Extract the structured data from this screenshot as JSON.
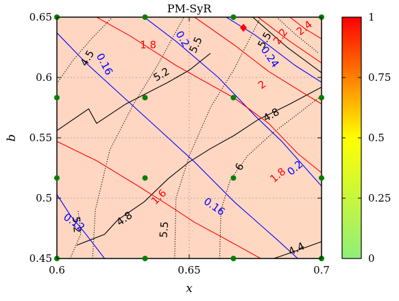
{
  "chart_data": {
    "type": "heatmap",
    "title": "PM-SyR",
    "xlabel": "x",
    "ylabel": "b",
    "xlim": [
      0.6,
      0.7
    ],
    "ylim": [
      0.45,
      0.65
    ],
    "xticks": [
      0.6,
      0.65,
      0.7
    ],
    "xtick_labels": [
      "0.6",
      "0.65",
      "0.7"
    ],
    "yticks": [
      0.45,
      0.5,
      0.55,
      0.6,
      0.65
    ],
    "ytick_labels": [
      "0.45",
      "0.5",
      "0.55",
      "0.6",
      "0.65"
    ],
    "grid": true,
    "colorbar": {
      "range": [
        0,
        1
      ],
      "ticks": [
        0,
        0.25,
        0.5,
        0.75,
        1
      ],
      "tick_labels": [
        "0",
        "0.25",
        "0.5",
        "0.75",
        "1"
      ],
      "colors": [
        "#90ee7a",
        "#ffff00",
        "#ff0000"
      ]
    },
    "background_cells": [
      {
        "x": [
          0.6,
          0.6667
        ],
        "y": [
          0.45,
          0.65
        ],
        "value": 0.84
      },
      {
        "x": [
          0.6667,
          0.7
        ],
        "y": [
          0.45,
          0.65
        ],
        "value": 0.82
      }
    ],
    "marker": {
      "x": 0.6705,
      "y": 0.6412,
      "value": 1.0
    },
    "sample_points": {
      "x": [
        0.6,
        0.6333,
        0.6667,
        0.7
      ],
      "y": [
        0.45,
        0.5167,
        0.5833,
        0.65
      ],
      "color": "#008000"
    },
    "contours": [
      {
        "group": "black-solid",
        "color": "#000000",
        "style": "solid",
        "label": "5.2",
        "points": [
          [
            0.6,
            0.556
          ],
          [
            0.612,
            0.574
          ],
          [
            0.615,
            0.562
          ],
          [
            0.626,
            0.578
          ],
          [
            0.642,
            0.596
          ],
          [
            0.65,
            0.606
          ],
          [
            0.658,
            0.62
          ]
        ]
      },
      {
        "group": "black-solid",
        "color": "#000000",
        "style": "solid",
        "label": "4.8",
        "points": [
          [
            0.6075,
            0.461
          ],
          [
            0.618,
            0.47
          ],
          [
            0.623,
            0.482
          ],
          [
            0.633,
            0.497
          ],
          [
            0.642,
            0.516
          ],
          [
            0.65,
            0.53
          ],
          [
            0.658,
            0.541
          ],
          [
            0.667,
            0.552
          ],
          [
            0.676,
            0.565
          ],
          [
            0.688,
            0.578
          ],
          [
            0.7,
            0.592
          ]
        ]
      },
      {
        "group": "black-solid",
        "color": "#000000",
        "style": "solid",
        "label": "4.4",
        "points": [
          [
            0.682,
            0.45
          ],
          [
            0.69,
            0.456
          ],
          [
            0.7,
            0.464
          ]
        ]
      },
      {
        "group": "black-solid",
        "color": "#000000",
        "style": "solid",
        "label": "",
        "points": [
          [
            0.674,
            0.65
          ],
          [
            0.687,
            0.625
          ],
          [
            0.7,
            0.604
          ]
        ]
      },
      {
        "group": "black-dotted",
        "color": "#000000",
        "style": "dotted",
        "label": "4.5",
        "points": [
          [
            0.6,
            0.595
          ],
          [
            0.606,
            0.614
          ],
          [
            0.613,
            0.632
          ],
          [
            0.621,
            0.65
          ]
        ]
      },
      {
        "group": "black-dotted",
        "color": "#000000",
        "style": "dotted",
        "label": "5.5",
        "points": [
          [
            0.6135,
            0.45
          ],
          [
            0.6145,
            0.49
          ],
          [
            0.62,
            0.54
          ],
          [
            0.629,
            0.578
          ],
          [
            0.638,
            0.61
          ],
          [
            0.648,
            0.65
          ]
        ]
      },
      {
        "group": "black-dotted",
        "color": "#000000",
        "style": "dotted",
        "label": "5.5",
        "points": [
          [
            0.6445,
            0.45
          ],
          [
            0.645,
            0.5
          ],
          [
            0.65,
            0.535
          ],
          [
            0.658,
            0.575
          ],
          [
            0.667,
            0.607
          ],
          [
            0.677,
            0.65
          ]
        ]
      },
      {
        "group": "black-dotted",
        "color": "#000000",
        "style": "dotted",
        "label": "6",
        "points": [
          [
            0.6615,
            0.45
          ],
          [
            0.662,
            0.49
          ],
          [
            0.6655,
            0.515
          ],
          [
            0.672,
            0.535
          ],
          [
            0.681,
            0.553
          ],
          [
            0.69,
            0.568
          ],
          [
            0.7,
            0.585
          ]
        ]
      },
      {
        "group": "black-dotted",
        "color": "#000000",
        "style": "dotted",
        "label": "",
        "points": [
          [
            0.605,
            0.45
          ],
          [
            0.609,
            0.47
          ],
          [
            0.608,
            0.49
          ]
        ]
      },
      {
        "group": "black-dotted",
        "color": "#000000",
        "style": "dotted",
        "label": "5.5",
        "points": [
          [
            0.683,
            0.65
          ],
          [
            0.69,
            0.636
          ],
          [
            0.699,
            0.62
          ]
        ]
      },
      {
        "group": "blue",
        "color": "#0000ff",
        "style": "solid",
        "label": "0.12",
        "points": [
          [
            0.6,
            0.503
          ],
          [
            0.605,
            0.486
          ],
          [
            0.611,
            0.47
          ],
          [
            0.618,
            0.45
          ]
        ]
      },
      {
        "group": "blue",
        "color": "#0000ff",
        "style": "solid",
        "label": "0.16",
        "points": [
          [
            0.6,
            0.637
          ],
          [
            0.611,
            0.612
          ],
          [
            0.622,
            0.59
          ],
          [
            0.636,
            0.562
          ],
          [
            0.652,
            0.53
          ],
          [
            0.667,
            0.497
          ],
          [
            0.683,
            0.466
          ],
          [
            0.691,
            0.45
          ]
        ]
      },
      {
        "group": "blue",
        "color": "#0000ff",
        "style": "solid",
        "label": "0.2",
        "points": [
          [
            0.633,
            0.65
          ],
          [
            0.645,
            0.63
          ],
          [
            0.661,
            0.6
          ],
          [
            0.675,
            0.568
          ],
          [
            0.685,
            0.547
          ],
          [
            0.7,
            0.51
          ]
        ]
      },
      {
        "group": "blue",
        "color": "#0000ff",
        "style": "solid",
        "label": "0.24",
        "points": [
          [
            0.664,
            0.65
          ],
          [
            0.675,
            0.635
          ],
          [
            0.69,
            0.61
          ],
          [
            0.7,
            0.596
          ]
        ]
      },
      {
        "group": "red",
        "color": "#ff0000",
        "style": "solid",
        "label": "1.6",
        "points": [
          [
            0.6,
            0.547
          ],
          [
            0.615,
            0.531
          ],
          [
            0.63,
            0.511
          ],
          [
            0.643,
            0.493
          ],
          [
            0.652,
            0.48
          ],
          [
            0.663,
            0.467
          ],
          [
            0.677,
            0.45
          ]
        ]
      },
      {
        "group": "red",
        "color": "#ff0000",
        "style": "solid",
        "label": "1.8",
        "points": [
          [
            0.615,
            0.65
          ],
          [
            0.628,
            0.634
          ],
          [
            0.645,
            0.61
          ],
          [
            0.667,
            0.583
          ],
          [
            0.68,
            0.562
          ],
          [
            0.691,
            0.537
          ],
          [
            0.7,
            0.521
          ]
        ]
      },
      {
        "group": "red",
        "color": "#ff0000",
        "style": "solid",
        "label": "2",
        "points": [
          [
            0.652,
            0.65
          ],
          [
            0.667,
            0.627
          ],
          [
            0.68,
            0.605
          ],
          [
            0.694,
            0.586
          ],
          [
            0.7,
            0.578
          ]
        ]
      },
      {
        "group": "red",
        "color": "#ff0000",
        "style": "solid",
        "label": "2.2",
        "points": [
          [
            0.676,
            0.65
          ],
          [
            0.688,
            0.63
          ],
          [
            0.7,
            0.612
          ]
        ]
      },
      {
        "group": "red",
        "color": "#ff0000",
        "style": "solid",
        "label": "2.4",
        "points": [
          [
            0.688,
            0.65
          ],
          [
            0.694,
            0.64
          ],
          [
            0.7,
            0.632
          ]
        ]
      }
    ],
    "contour_labels": [
      {
        "text": "5.2",
        "x": 0.6395,
        "y": 0.6025,
        "color": "#000000",
        "angle": -30
      },
      {
        "text": "5.5",
        "x": 0.6525,
        "y": 0.627,
        "color": "#000000",
        "angle": -65
      },
      {
        "text": "4.5",
        "x": 0.6115,
        "y": 0.616,
        "color": "#000000",
        "angle": -60
      },
      {
        "text": "5.5",
        "x": 0.6785,
        "y": 0.631,
        "color": "#000000",
        "angle": -60
      },
      {
        "text": "4.8",
        "x": 0.681,
        "y": 0.569,
        "color": "#000000",
        "angle": -30
      },
      {
        "text": "6",
        "x": 0.669,
        "y": 0.526,
        "color": "#000000",
        "angle": -60
      },
      {
        "text": "4.8",
        "x": 0.6255,
        "y": 0.483,
        "color": "#000000",
        "angle": -35
      },
      {
        "text": "5.5",
        "x": 0.6405,
        "y": 0.474,
        "color": "#000000",
        "angle": -85
      },
      {
        "text": "4.4",
        "x": 0.6905,
        "y": 0.458,
        "color": "#000000",
        "angle": -25
      },
      {
        "text": "5.2",
        "x": 0.6075,
        "y": 0.478,
        "color": "#000000",
        "angle": 85
      },
      {
        "text": "0.2",
        "x": 0.6475,
        "y": 0.632,
        "color": "#0000ff",
        "angle": 60
      },
      {
        "text": "0.16",
        "x": 0.618,
        "y": 0.611,
        "color": "#0000ff",
        "angle": 62
      },
      {
        "text": "0.24",
        "x": 0.6805,
        "y": 0.617,
        "color": "#0000ff",
        "angle": 55
      },
      {
        "text": "0.2",
        "x": 0.69,
        "y": 0.525,
        "color": "#0000ff",
        "angle": -40
      },
      {
        "text": "0.16",
        "x": 0.6595,
        "y": 0.493,
        "color": "#0000ff",
        "angle": 35
      },
      {
        "text": "0.12",
        "x": 0.6065,
        "y": 0.48,
        "color": "#0000ff",
        "angle": 35
      },
      {
        "text": "1.8",
        "x": 0.6345,
        "y": 0.627,
        "color": "#ff0000",
        "angle": 0
      },
      {
        "text": "2.4",
        "x": 0.6935,
        "y": 0.641,
        "color": "#ff0000",
        "angle": -38
      },
      {
        "text": "2.2",
        "x": 0.6845,
        "y": 0.634,
        "color": "#ff0000",
        "angle": -55
      },
      {
        "text": "2",
        "x": 0.6775,
        "y": 0.594,
        "color": "#ff0000",
        "angle": -38
      },
      {
        "text": "1.8",
        "x": 0.6835,
        "y": 0.519,
        "color": "#ff0000",
        "angle": -40
      },
      {
        "text": "1.6",
        "x": 0.6385,
        "y": 0.501,
        "color": "#ff0000",
        "angle": -45
      }
    ]
  }
}
